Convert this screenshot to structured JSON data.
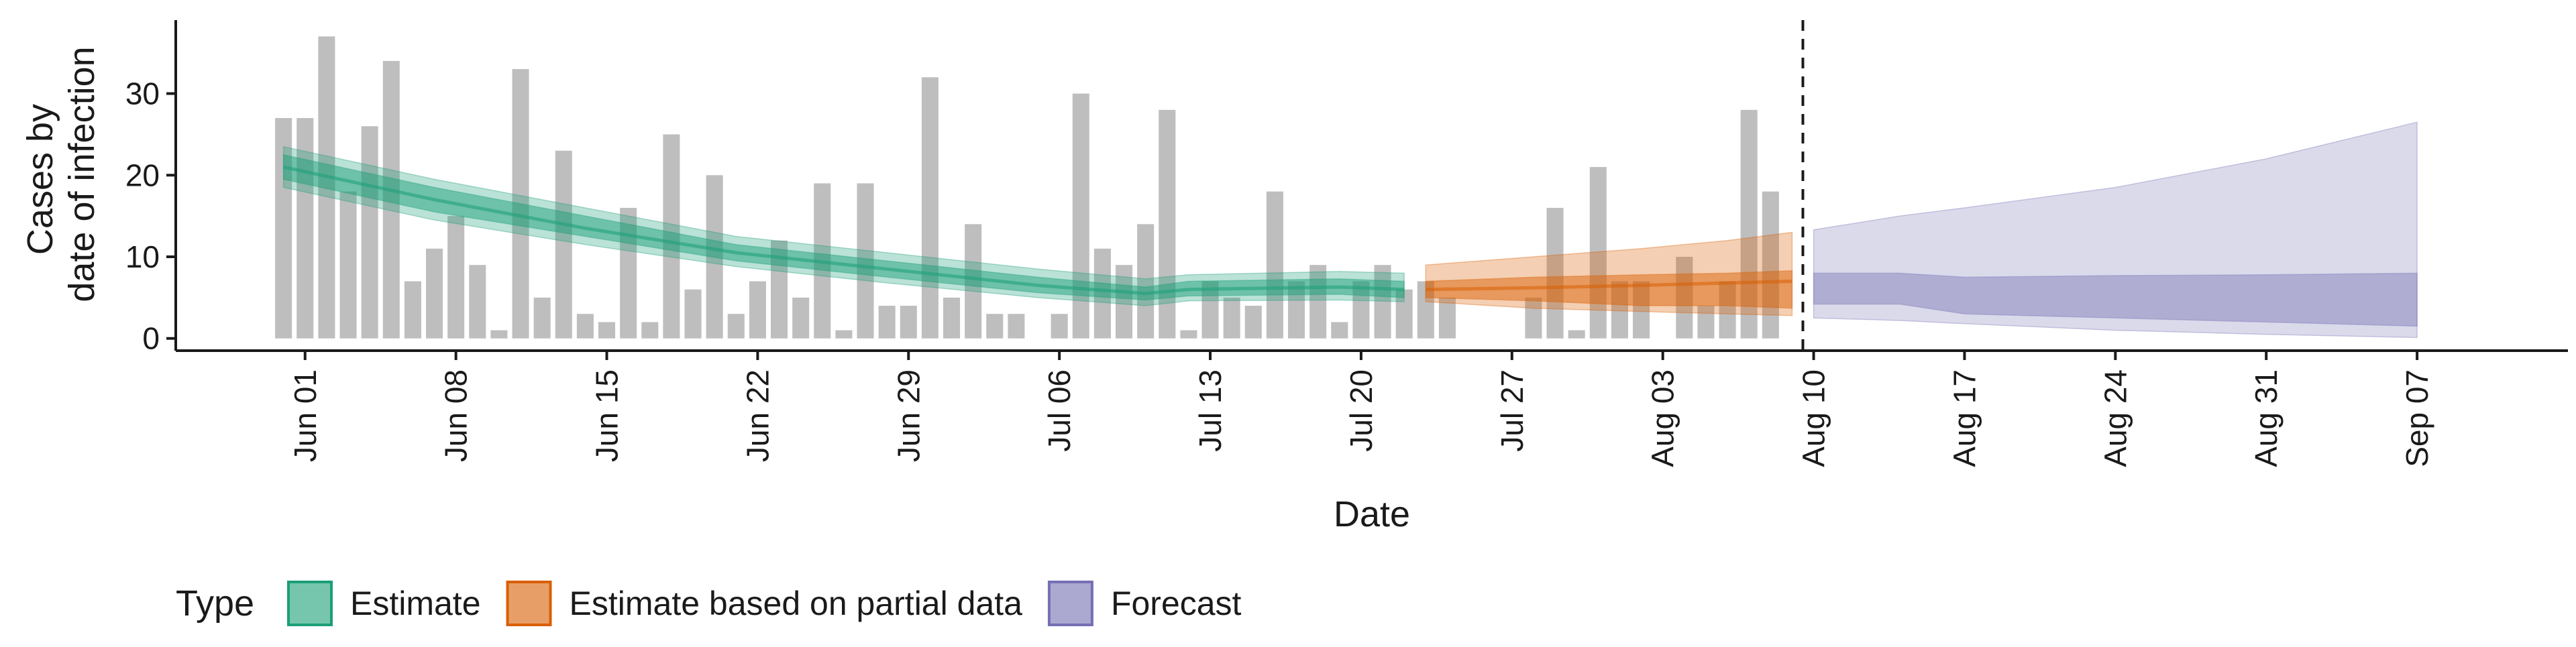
{
  "chart_data": {
    "type": "bar",
    "title": "",
    "xlabel": "Date",
    "ylabel_lines": [
      "Cases by",
      "date of infection"
    ],
    "ylim": [
      -1.5,
      39
    ],
    "xlim": [
      "2020-05-26",
      "2020-09-14"
    ],
    "y_ticks": [
      0,
      10,
      20,
      30
    ],
    "x_ticks": [
      {
        "date": "2020-06-01",
        "label": "Jun 01"
      },
      {
        "date": "2020-06-08",
        "label": "Jun 08"
      },
      {
        "date": "2020-06-15",
        "label": "Jun 15"
      },
      {
        "date": "2020-06-22",
        "label": "Jun 22"
      },
      {
        "date": "2020-06-29",
        "label": "Jun 29"
      },
      {
        "date": "2020-07-06",
        "label": "Jul 06"
      },
      {
        "date": "2020-07-13",
        "label": "Jul 13"
      },
      {
        "date": "2020-07-20",
        "label": "Jul 20"
      },
      {
        "date": "2020-07-27",
        "label": "Jul 27"
      },
      {
        "date": "2020-08-03",
        "label": "Aug 03"
      },
      {
        "date": "2020-08-10",
        "label": "Aug 10"
      },
      {
        "date": "2020-08-17",
        "label": "Aug 17"
      },
      {
        "date": "2020-08-24",
        "label": "Aug 24"
      },
      {
        "date": "2020-08-31",
        "label": "Aug 31"
      },
      {
        "date": "2020-09-07",
        "label": "Sep 07"
      }
    ],
    "grid": false,
    "legend_position": "bottom-left",
    "vline_date": "2020-08-09",
    "observed_cases": {
      "start_date": "2020-05-31",
      "bar_color": "#bebebe",
      "values": [
        27,
        27,
        37,
        18,
        26,
        34,
        7,
        11,
        15,
        9,
        1,
        33,
        5,
        23,
        3,
        2,
        16,
        2,
        25,
        6,
        20,
        3,
        7,
        12,
        5,
        19,
        1,
        19,
        4,
        4,
        32,
        5,
        14,
        3,
        3,
        0,
        3,
        30,
        11,
        9,
        14,
        28,
        1,
        7,
        5,
        4,
        18,
        7,
        9,
        2,
        7,
        9,
        6,
        7,
        5,
        0,
        0,
        0,
        5,
        16,
        1,
        21,
        7,
        7,
        0,
        10,
        4,
        7,
        28,
        18
      ]
    },
    "legend": {
      "title": "Type",
      "entries": [
        {
          "label": "Estimate",
          "color": "#1b9e77"
        },
        {
          "label": "Estimate based on partial data",
          "color": "#d95f02"
        },
        {
          "label": "Forecast",
          "color": "#7570b3"
        }
      ]
    },
    "series": [
      {
        "name": "Estimate",
        "color": "#1b9e77",
        "x": [
          "2020-05-31",
          "2020-06-07",
          "2020-06-14",
          "2020-06-21",
          "2020-06-28",
          "2020-07-05",
          "2020-07-10",
          "2020-07-12",
          "2020-07-19",
          "2020-07-22"
        ],
        "median": [
          21,
          17,
          13.5,
          10.5,
          8.5,
          6.5,
          5.5,
          6,
          6.3,
          6
        ],
        "inner_lower": [
          19.5,
          15.5,
          12.5,
          9.5,
          7.5,
          5.6,
          4.7,
          5.2,
          5.4,
          5
        ],
        "inner_upper": [
          22.5,
          18.5,
          15,
          11.5,
          9.5,
          7.5,
          6.3,
          7,
          7.3,
          7
        ],
        "outer_lower": [
          18.5,
          14.5,
          11.5,
          8.8,
          6.8,
          5,
          4,
          4.6,
          4.7,
          4.5
        ],
        "outer_upper": [
          23.5,
          19.5,
          16,
          12.5,
          10.5,
          8.5,
          7.3,
          7.8,
          8.2,
          8
        ]
      },
      {
        "name": "Estimate based on partial data",
        "color": "#d95f02",
        "x": [
          "2020-07-23",
          "2020-07-28",
          "2020-08-02",
          "2020-08-06",
          "2020-08-09"
        ],
        "median": [
          6,
          6.2,
          6.5,
          6.8,
          7
        ],
        "inner_lower": [
          5,
          4.6,
          4,
          4,
          3.7
        ],
        "inner_upper": [
          7,
          7.5,
          7.8,
          8,
          8.3
        ],
        "outer_lower": [
          4.5,
          3.7,
          3.3,
          3,
          2.8
        ],
        "outer_upper": [
          9,
          10,
          11,
          12,
          13
        ]
      },
      {
        "name": "Forecast",
        "color": "#7570b3",
        "x": [
          "2020-08-10",
          "2020-08-14",
          "2020-08-17",
          "2020-08-24",
          "2020-08-31",
          "2020-09-07"
        ],
        "inner_lower": [
          4.2,
          4.2,
          3,
          2.5,
          2,
          1.5
        ],
        "inner_upper": [
          8,
          8,
          7.5,
          7.7,
          7.8,
          8
        ],
        "outer_lower": [
          2.5,
          2.2,
          1.8,
          1,
          0.5,
          0.1
        ],
        "outer_upper": [
          13.3,
          15,
          16,
          18.5,
          22,
          26.5
        ]
      }
    ]
  }
}
